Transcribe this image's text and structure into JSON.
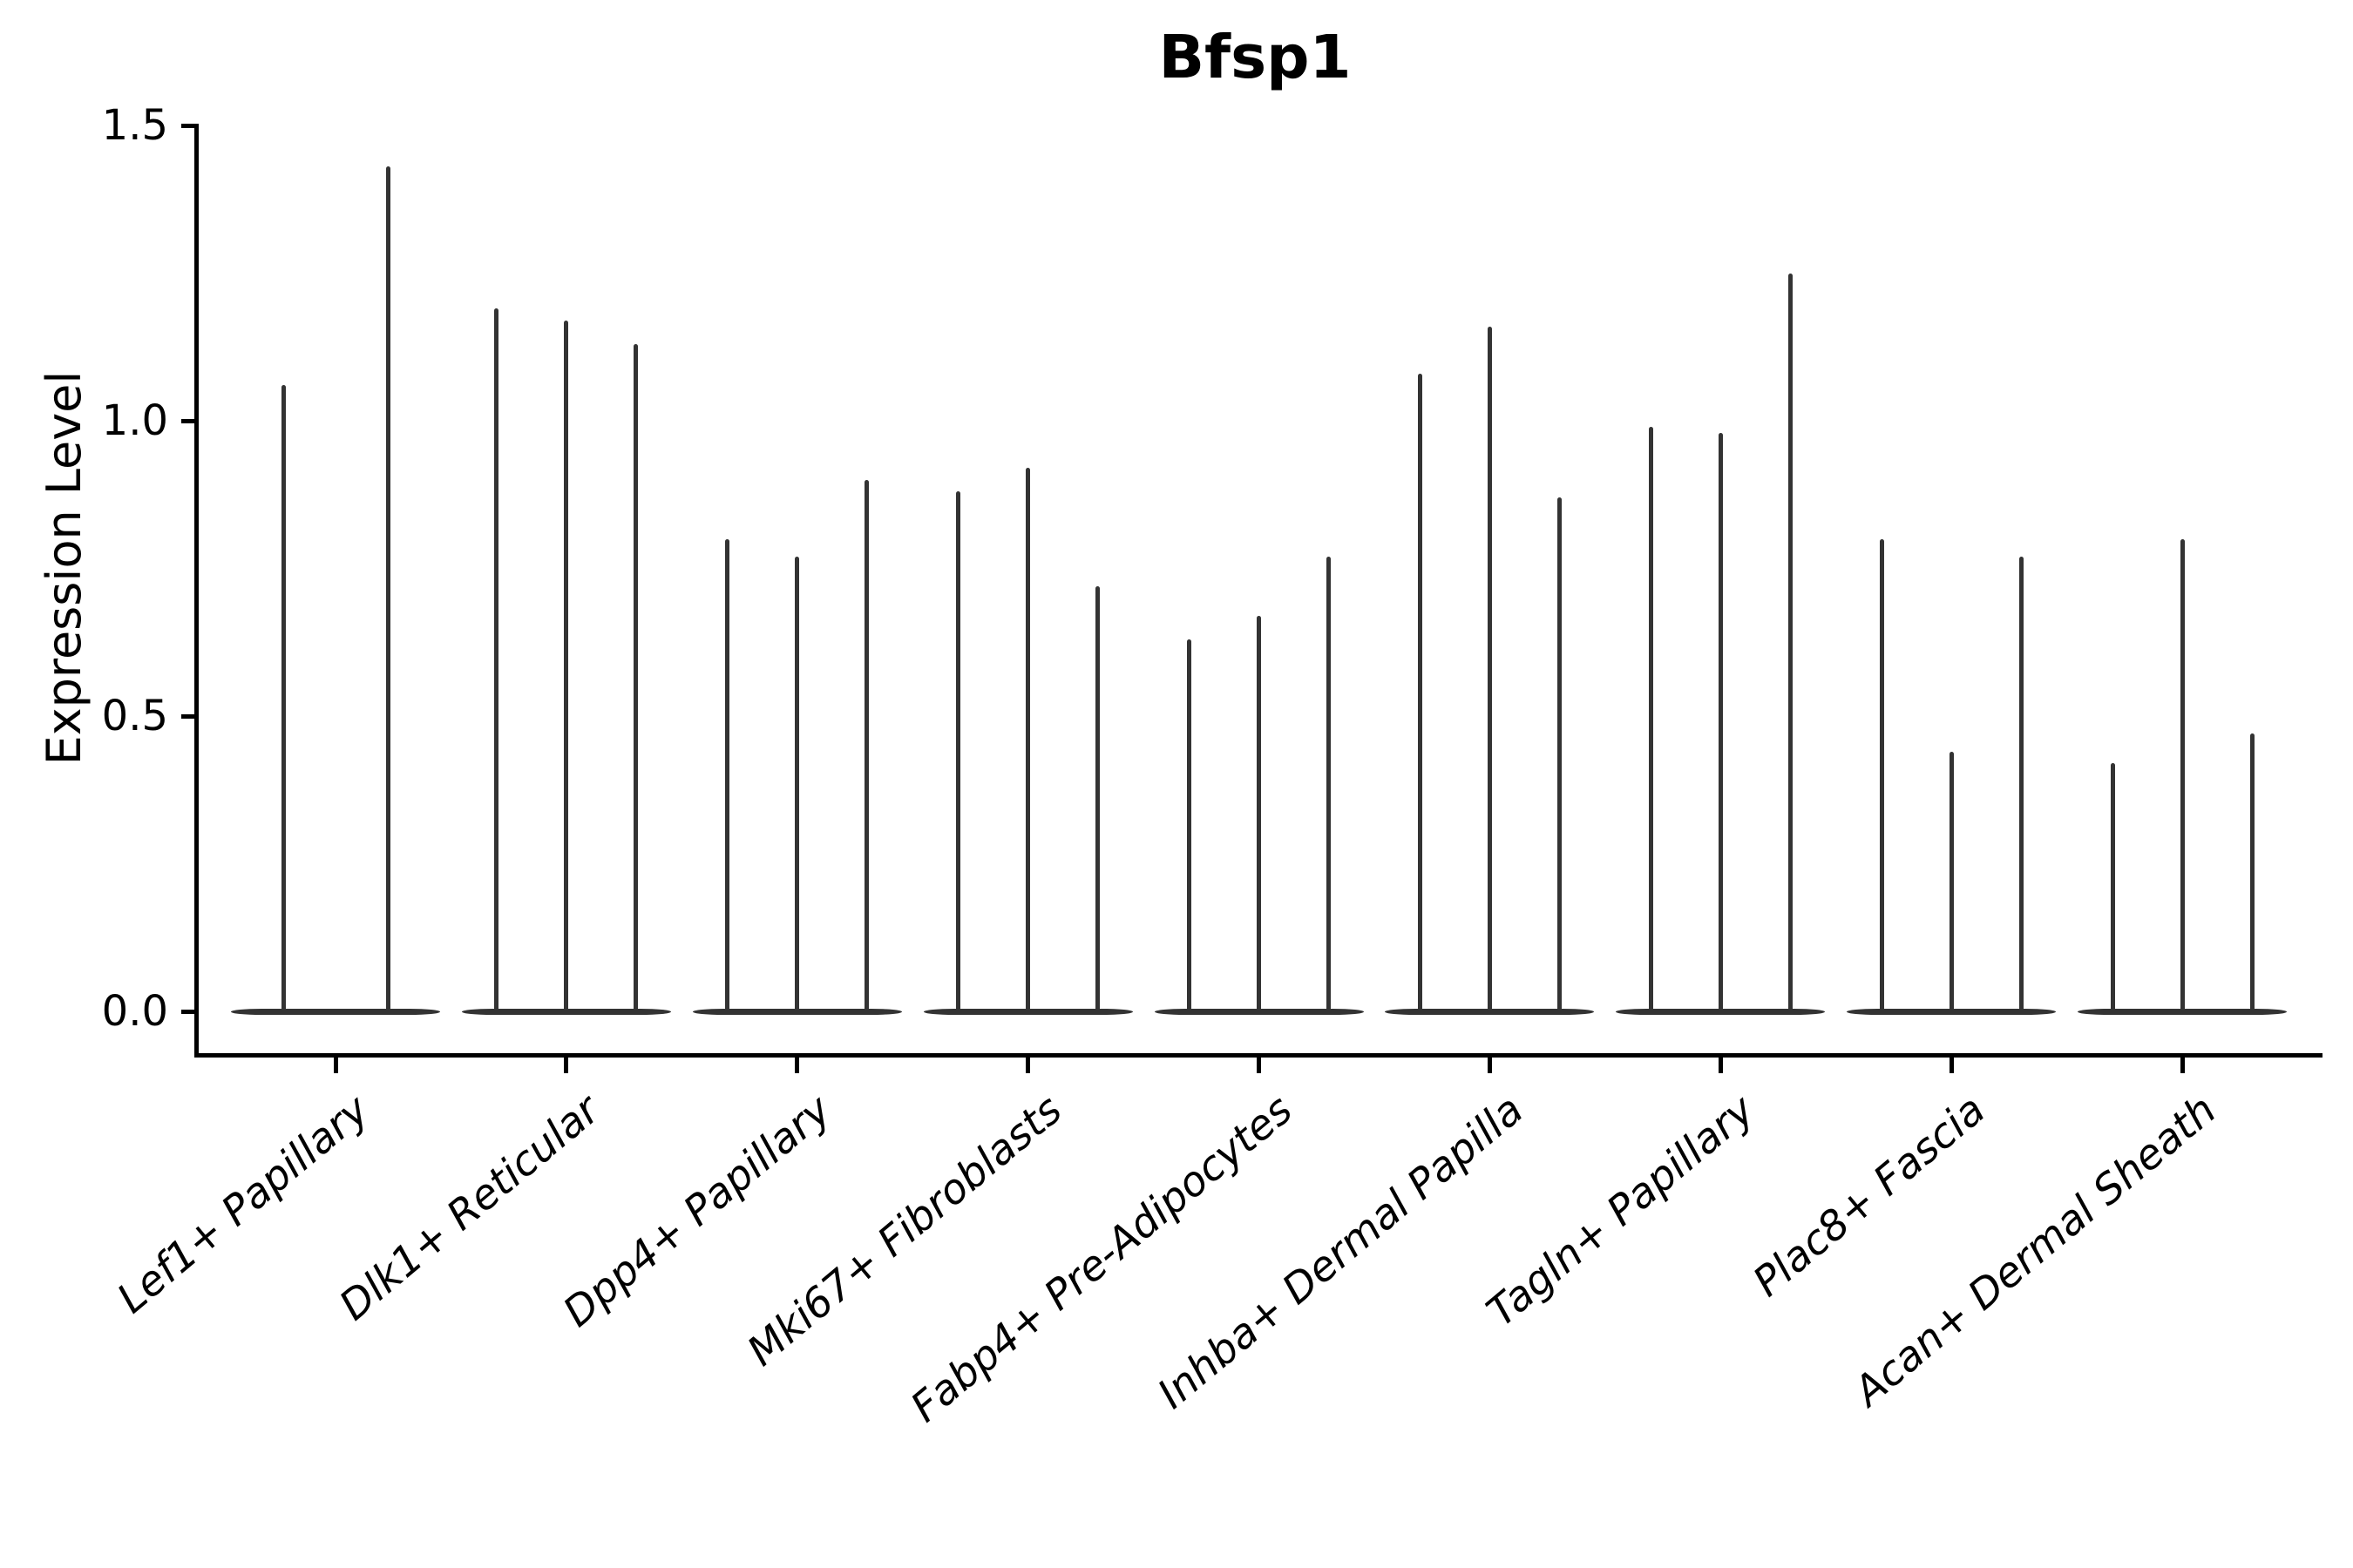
{
  "title": "Bfsp1",
  "ylabel": "Expression Level",
  "chart_data": {
    "type": "violin",
    "title": "Bfsp1",
    "xlabel": "",
    "ylabel": "Expression Level",
    "ylim": [
      0.0,
      1.5
    ],
    "ytick_values": [
      0.0,
      0.5,
      1.0,
      1.5
    ],
    "ytick_labels": [
      "0.0",
      "0.5",
      "1.0",
      "1.5"
    ],
    "grid": false,
    "legend_position": "none",
    "description": "Collapsed violins: each violin is a flat dense body at expression 0 with a thin spike reaching the maximum expression value",
    "categories": [
      "Lef1+ Papillary",
      "Dlk1+ Reticular",
      "Dpp4+ Papillary",
      "Mki67+ Fibroblasts",
      "Fabp4+ Pre-Adipocytes",
      "Inhba+ Dermal Papilla",
      "Tagln+ Papillary",
      "Plac8+ Fascia",
      "Acan+ Dermal Sheath"
    ],
    "violin_max_values": [
      [
        1.06,
        1.43
      ],
      [
        1.19,
        1.17,
        1.13
      ],
      [
        0.8,
        0.77,
        0.9
      ],
      [
        0.88,
        0.92,
        0.72
      ],
      [
        0.63,
        0.67,
        0.77
      ],
      [
        1.08,
        1.16,
        0.87
      ],
      [
        0.99,
        0.98,
        1.25
      ],
      [
        0.8,
        0.44,
        0.77
      ],
      [
        0.42,
        0.8,
        0.47
      ]
    ],
    "violin_min_value": 0.0,
    "colors": {
      "violin": "#333333",
      "spine": "#000000",
      "text": "#000000",
      "background": "#ffffff"
    }
  }
}
